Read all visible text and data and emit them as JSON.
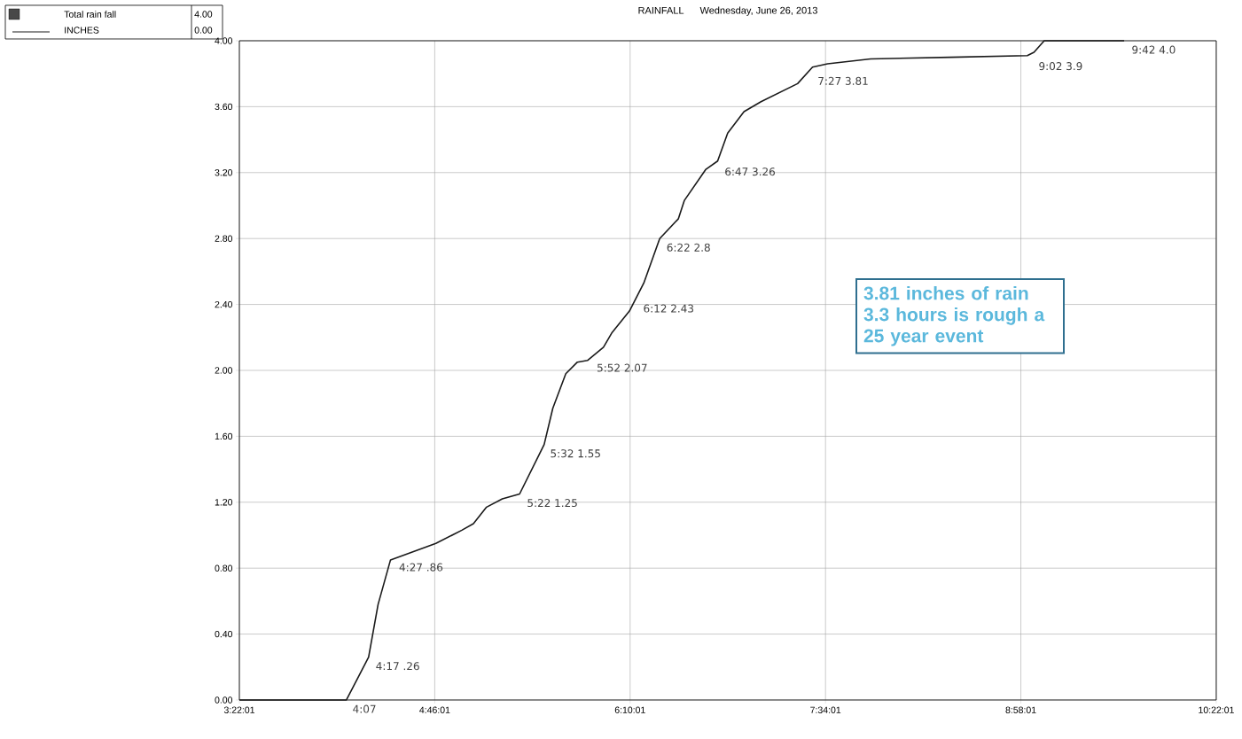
{
  "chart_data": {
    "type": "line",
    "title": "RAINFALL",
    "subtitle": "Wednesday, June 26, 2013",
    "legend": "top left",
    "grid": true,
    "marker": "none",
    "line_style": "solid",
    "xlim": [
      3.36694,
      10.36694
    ],
    "ylim": [
      0,
      4
    ],
    "xticks": [
      {
        "value": 3.36694,
        "label": "3:22:01"
      },
      {
        "value": 4.76694,
        "label": "4:46:01"
      },
      {
        "value": 6.16694,
        "label": "6:10:01"
      },
      {
        "value": 7.56694,
        "label": "7:34:01"
      },
      {
        "value": 8.96694,
        "label": "8:58:01"
      },
      {
        "value": 10.36694,
        "label": "10:22:01"
      }
    ],
    "yticks": [
      {
        "value": 0,
        "label": "0.00"
      },
      {
        "value": 0.4,
        "label": "0.40"
      },
      {
        "value": 0.8,
        "label": "0.80"
      },
      {
        "value": 1.2,
        "label": "1.20"
      },
      {
        "value": 1.6,
        "label": "1.60"
      },
      {
        "value": 2.0,
        "label": "2.00"
      },
      {
        "value": 2.4,
        "label": "2.40"
      },
      {
        "value": 2.8,
        "label": "2.80"
      },
      {
        "value": 3.2,
        "label": "3.20"
      },
      {
        "value": 3.6,
        "label": "3.60"
      },
      {
        "value": 4.0,
        "label": "4.00"
      }
    ],
    "series": [
      {
        "name": "Total rain fall",
        "color": "#1a1a1a",
        "x": [
          3.36694,
          4.134,
          4.293,
          4.361,
          4.45,
          4.775,
          4.961,
          5.044,
          5.138,
          5.251,
          5.375,
          5.551,
          5.613,
          5.706,
          5.789,
          5.861,
          5.976,
          6.038,
          6.162,
          6.265,
          6.379,
          6.513,
          6.555,
          6.71,
          6.794,
          6.866,
          6.983,
          7.105,
          7.367,
          7.474,
          7.582,
          7.89,
          8.465,
          9.013,
          9.061,
          9.134,
          9.707
        ],
        "values": [
          0,
          0,
          0.26,
          0.58,
          0.85,
          0.95,
          1.03,
          1.07,
          1.17,
          1.22,
          1.25,
          1.55,
          1.77,
          1.98,
          2.05,
          2.06,
          2.14,
          2.23,
          2.36,
          2.53,
          2.8,
          2.92,
          3.03,
          3.22,
          3.27,
          3.44,
          3.57,
          3.63,
          3.74,
          3.84,
          3.86,
          3.89,
          3.9,
          3.91,
          3.93,
          4.0,
          4.0
        ]
      }
    ],
    "annotations": [
      "INCHES",
      "4.00",
      "0.00",
      "3.81 inches of rain 3.3 hours is rough a 25 year event",
      {
        "text": "4:07",
        "x": 4.117,
        "y": 0
      },
      {
        "text": "4:17 .26",
        "x": 4.283,
        "y": 0.26
      },
      {
        "text": "4:27 .86",
        "x": 4.45,
        "y": 0.86
      },
      {
        "text": "5:22 1.25",
        "x": 5.367,
        "y": 1.25
      },
      {
        "text": "5:32 1.55",
        "x": 5.533,
        "y": 1.55
      },
      {
        "text": "5:52 2.07",
        "x": 5.867,
        "y": 2.07
      },
      {
        "text": "6:12 2.43",
        "x": 6.2,
        "y": 2.43
      },
      {
        "text": "6:22 2.8",
        "x": 6.367,
        "y": 2.8
      },
      {
        "text": "6:47 3.26",
        "x": 6.783,
        "y": 3.26
      },
      {
        "text": "7:27 3.81",
        "x": 7.45,
        "y": 3.81
      },
      {
        "text": "9:02 3.9",
        "x": 9.033,
        "y": 3.9
      },
      {
        "text": "9:42 4.0",
        "x": 9.7,
        "y": 4.0
      }
    ]
  }
}
